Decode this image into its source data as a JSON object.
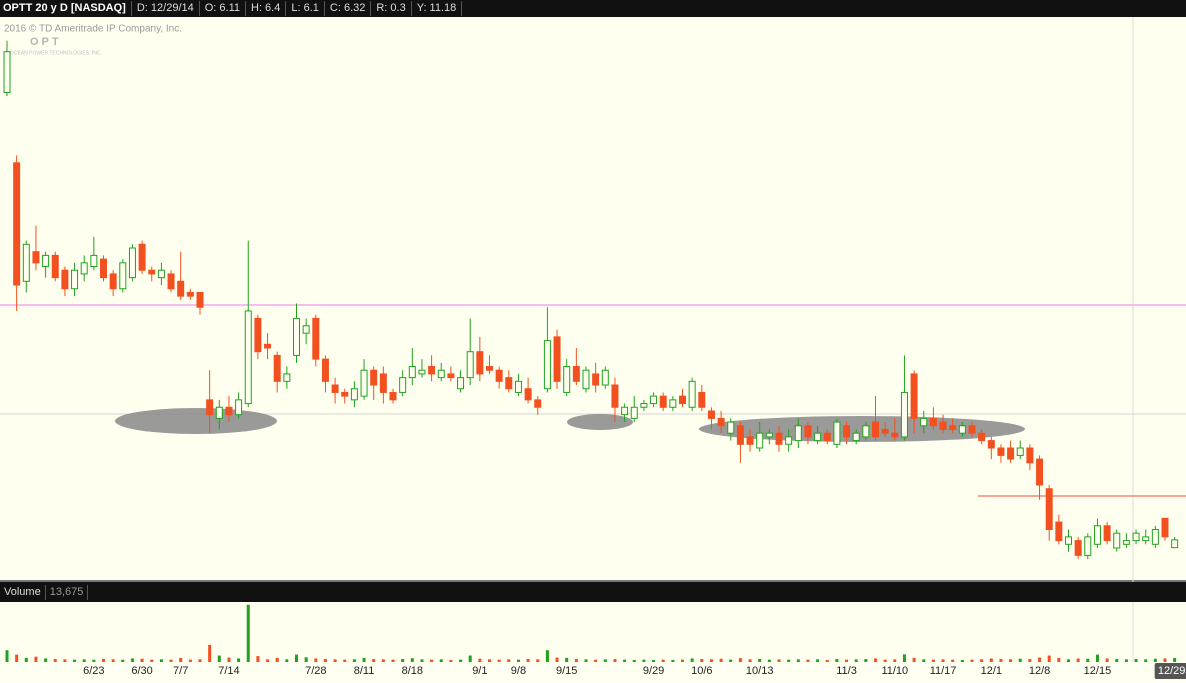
{
  "chart_data": {
    "type": "candlestick",
    "title": "OPTT 20 y D [NASDAQ]",
    "header": [
      "D: 12/29/14",
      "O: 6.11",
      "H: 6.4",
      "L: 6.1",
      "C: 6.32",
      "R: 0.3",
      "Y: 11.18"
    ],
    "watermark": "2016 © TD Ameritrade IP Company, Inc.",
    "logo": "OPT",
    "logo_subtitle": "OCEAN POWER TECHNOLOGIES, INC.",
    "up_color": "#1fa31f",
    "down_color": "#f2501e",
    "ylim": [
      5.29,
      20.41
    ],
    "categories": [
      null,
      null,
      null,
      null,
      null,
      null,
      null,
      null,
      null,
      "6/23",
      null,
      null,
      null,
      null,
      "6/30",
      null,
      null,
      null,
      "7/7",
      null,
      null,
      null,
      null,
      "7/14",
      null,
      null,
      null,
      null,
      null,
      null,
      null,
      null,
      "7/28",
      null,
      null,
      null,
      null,
      "8/11",
      null,
      null,
      null,
      null,
      "8/18",
      null,
      null,
      null,
      null,
      null,
      null,
      "9/1",
      null,
      null,
      null,
      "9/8",
      null,
      null,
      null,
      null,
      "9/15",
      null,
      null,
      null,
      null,
      null,
      null,
      null,
      null,
      "9/29",
      null,
      null,
      null,
      null,
      "10/6",
      null,
      null,
      null,
      null,
      null,
      "10/13",
      null,
      null,
      null,
      null,
      null,
      null,
      null,
      null,
      "11/3",
      null,
      null,
      null,
      null,
      "11/10",
      null,
      null,
      null,
      null,
      "11/17",
      null,
      null,
      null,
      null,
      "12/1",
      null,
      null,
      null,
      null,
      "12/8",
      null,
      null,
      null,
      null,
      null,
      "12/15",
      null,
      null,
      null,
      null,
      null,
      null,
      null,
      "12/29"
    ],
    "open": [
      18.4,
      16.5,
      13.3,
      14.1,
      13.7,
      14.0,
      13.6,
      13.1,
      13.5,
      13.7,
      13.9,
      13.5,
      13.1,
      13.4,
      14.3,
      13.6,
      13.4,
      13.5,
      13.3,
      13.0,
      13.0,
      10.1,
      9.6,
      9.9,
      9.7,
      10.0,
      12.3,
      11.6,
      11.3,
      10.6,
      11.3,
      11.9,
      12.3,
      11.2,
      10.5,
      10.3,
      10.1,
      10.2,
      10.9,
      10.8,
      10.3,
      10.3,
      10.7,
      10.8,
      11.0,
      10.7,
      10.8,
      10.4,
      10.7,
      11.4,
      11.0,
      10.9,
      10.7,
      10.3,
      10.4,
      10.1,
      10.4,
      11.8,
      10.3,
      11.0,
      10.4,
      10.8,
      10.5,
      10.5,
      9.7,
      9.6,
      9.9,
      10.0,
      10.2,
      9.9,
      10.2,
      9.9,
      10.3,
      9.8,
      9.6,
      9.2,
      9.4,
      9.1,
      8.8,
      9.1,
      9.2,
      8.9,
      9.0,
      9.4,
      9.0,
      9.2,
      8.9,
      9.4,
      9.0,
      9.1,
      9.5,
      9.3,
      9.2,
      9.1,
      10.8,
      9.4,
      9.6,
      9.5,
      9.4,
      9.2,
      9.4,
      9.2,
      9.0,
      8.8,
      8.8,
      8.6,
      8.8,
      8.5,
      7.7,
      6.8,
      6.2,
      6.3,
      5.9,
      6.2,
      6.7,
      6.1,
      6.2,
      6.3,
      6.3,
      6.2,
      6.9,
      6.11
    ],
    "high": [
      19.8,
      16.7,
      14.4,
      14.8,
      14.1,
      14.1,
      13.7,
      13.8,
      14.0,
      14.5,
      14.0,
      13.6,
      13.9,
      14.3,
      14.4,
      13.7,
      13.8,
      13.6,
      14.1,
      13.1,
      13.0,
      10.9,
      10.1,
      10.2,
      10.3,
      14.4,
      12.4,
      11.9,
      11.4,
      11.0,
      12.7,
      12.3,
      12.4,
      11.3,
      10.7,
      10.4,
      10.6,
      11.2,
      11.0,
      11.0,
      10.4,
      10.9,
      11.5,
      11.2,
      11.3,
      11.1,
      11.0,
      10.9,
      12.3,
      11.8,
      11.3,
      11.0,
      10.9,
      10.8,
      10.7,
      10.2,
      12.6,
      12.0,
      11.2,
      11.5,
      11.0,
      11.1,
      11.0,
      10.7,
      10.0,
      10.2,
      10.1,
      10.3,
      10.3,
      10.2,
      10.4,
      10.7,
      10.5,
      9.9,
      9.8,
      9.6,
      9.5,
      9.3,
      9.5,
      9.3,
      9.4,
      9.3,
      9.6,
      9.5,
      9.4,
      9.3,
      9.6,
      9.5,
      9.3,
      9.5,
      10.2,
      9.5,
      9.6,
      11.3,
      10.9,
      9.8,
      9.9,
      9.7,
      9.6,
      9.5,
      9.5,
      9.3,
      9.1,
      8.9,
      9.0,
      9.0,
      8.9,
      8.6,
      7.8,
      7.0,
      6.6,
      6.4,
      6.5,
      6.9,
      6.8,
      6.6,
      6.5,
      6.6,
      6.6,
      6.7,
      6.9,
      6.4
    ],
    "low": [
      18.3,
      12.5,
      13.0,
      13.6,
      13.4,
      13.3,
      12.9,
      12.9,
      13.3,
      13.6,
      13.3,
      12.9,
      13.0,
      13.3,
      13.5,
      13.3,
      13.2,
      13.0,
      12.8,
      12.8,
      12.4,
      9.2,
      9.3,
      9.5,
      9.6,
      9.9,
      11.2,
      11.2,
      10.3,
      10.4,
      11.1,
      11.6,
      11.0,
      10.3,
      10.0,
      10.0,
      9.9,
      10.1,
      10.1,
      10.0,
      10.0,
      10.2,
      10.5,
      10.7,
      10.6,
      10.6,
      10.6,
      10.3,
      10.5,
      10.6,
      10.8,
      10.4,
      10.3,
      10.2,
      10.0,
      9.7,
      10.3,
      10.4,
      10.2,
      10.5,
      10.3,
      10.3,
      10.4,
      9.5,
      9.5,
      9.5,
      9.8,
      9.9,
      9.8,
      9.8,
      9.9,
      9.8,
      9.8,
      9.3,
      9.2,
      9.0,
      8.4,
      8.7,
      8.7,
      8.9,
      8.7,
      8.7,
      8.8,
      8.9,
      8.9,
      8.9,
      8.8,
      8.9,
      8.9,
      9.0,
      9.0,
      9.1,
      9.0,
      9.0,
      9.2,
      9.2,
      9.3,
      9.2,
      9.2,
      9.1,
      9.1,
      8.9,
      8.5,
      8.4,
      8.4,
      8.5,
      8.2,
      7.4,
      6.3,
      6.2,
      6.0,
      5.8,
      5.8,
      6.1,
      6.2,
      6.0,
      6.1,
      6.2,
      6.2,
      6.1,
      6.3,
      6.1
    ],
    "close": [
      19.5,
      13.2,
      14.3,
      13.8,
      14.0,
      13.4,
      13.1,
      13.6,
      13.8,
      14.0,
      13.4,
      13.1,
      13.8,
      14.2,
      13.6,
      13.5,
      13.6,
      13.1,
      12.9,
      12.9,
      12.6,
      9.7,
      9.9,
      9.7,
      10.1,
      12.5,
      11.4,
      11.5,
      10.6,
      10.8,
      12.3,
      12.1,
      11.2,
      10.6,
      10.3,
      10.2,
      10.4,
      10.9,
      10.5,
      10.3,
      10.1,
      10.7,
      11.0,
      10.9,
      10.8,
      10.9,
      10.7,
      10.7,
      11.4,
      10.8,
      10.9,
      10.6,
      10.4,
      10.6,
      10.1,
      9.9,
      11.7,
      10.6,
      11.0,
      10.6,
      10.9,
      10.5,
      10.9,
      9.9,
      9.9,
      9.9,
      10.0,
      10.2,
      9.9,
      10.1,
      10.0,
      10.6,
      9.9,
      9.6,
      9.4,
      9.5,
      8.9,
      8.9,
      9.2,
      9.2,
      8.9,
      9.1,
      9.4,
      9.1,
      9.2,
      9.0,
      9.5,
      9.1,
      9.2,
      9.4,
      9.1,
      9.2,
      9.1,
      10.3,
      9.6,
      9.6,
      9.4,
      9.3,
      9.3,
      9.4,
      9.2,
      9.0,
      8.8,
      8.6,
      8.5,
      8.8,
      8.4,
      7.8,
      6.6,
      6.3,
      6.4,
      5.9,
      6.4,
      6.7,
      6.3,
      6.5,
      6.3,
      6.5,
      6.4,
      6.6,
      6.4,
      6.32
    ],
    "volume": {
      "title": "Volume",
      "current_label": "13,675",
      "ylim": [
        0,
        200000
      ],
      "values": [
        40000,
        25000,
        14000,
        18000,
        12000,
        10000,
        9000,
        8000,
        9000,
        8000,
        10000,
        9000,
        8000,
        12000,
        11000,
        8000,
        9000,
        8000,
        14000,
        8000,
        9000,
        58000,
        22000,
        15000,
        12000,
        194000,
        20000,
        9000,
        14000,
        9000,
        25000,
        16000,
        12000,
        10000,
        9000,
        8000,
        9000,
        14000,
        10000,
        9000,
        8000,
        10000,
        13000,
        9000,
        8000,
        9000,
        7000,
        8000,
        22000,
        11000,
        9000,
        8000,
        9000,
        8000,
        10000,
        9000,
        40000,
        15000,
        14000,
        10000,
        9000,
        8000,
        9000,
        10000,
        8000,
        7000,
        8000,
        7000,
        8000,
        7000,
        8000,
        12000,
        10000,
        9000,
        11000,
        8000,
        13000,
        9000,
        10000,
        8000,
        9000,
        8000,
        9000,
        8000,
        9000,
        7000,
        10000,
        8000,
        9000,
        10000,
        12000,
        8000,
        9000,
        26000,
        14000,
        9000,
        8000,
        9000,
        8000,
        7000,
        8000,
        9000,
        12000,
        10000,
        9000,
        11000,
        10000,
        15000,
        22000,
        14000,
        9000,
        12000,
        11000,
        25000,
        12000,
        10000,
        9000,
        10000,
        9000,
        11000,
        12000,
        13675
      ]
    }
  }
}
